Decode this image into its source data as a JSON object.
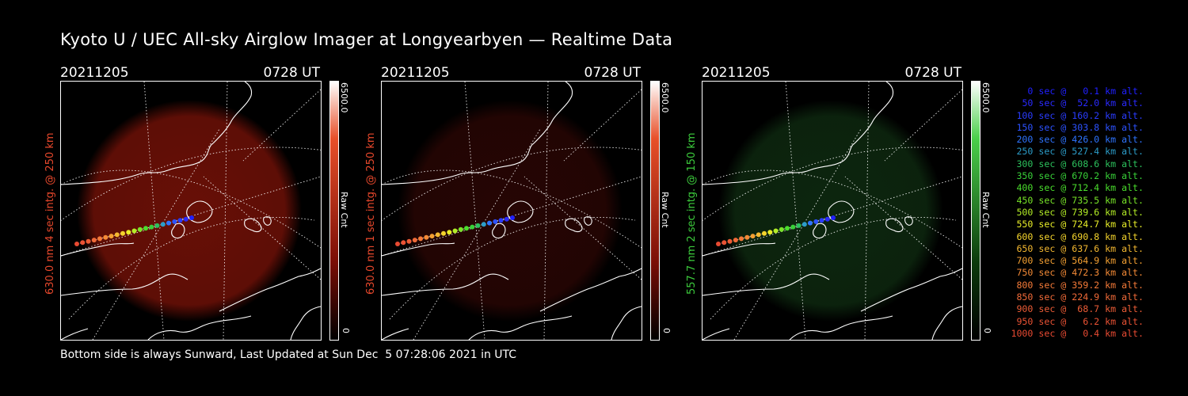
{
  "page": {
    "title": "Kyoto U / UEC All-sky Airglow Imager at Longyearbyen — Realtime Data",
    "footer": "Bottom side is always Sunward, Last Updated at Sun Dec  5 07:28:06 2021 in UTC"
  },
  "panels": [
    {
      "date": "20211205",
      "time": "0728 UT",
      "ylabel": "630.0 nm 4 sec intg. @ 250 km",
      "ylabel_color": "#e8482c",
      "cbar_max": "6500.0",
      "cbar_min": "0",
      "cbar_label": "Raw Cnt",
      "cbar_top_color": "#ffffff",
      "cbar_mid_color": "#e8502a",
      "cbar_low_color": "#7a0e06",
      "glow_color": "#7a1208",
      "glow_opacity": 0.85
    },
    {
      "date": "20211205",
      "time": "0728 UT",
      "ylabel": "630.0 nm 1 sec intg. @ 250 km",
      "ylabel_color": "#e8482c",
      "cbar_max": "6500.0",
      "cbar_min": "0",
      "cbar_label": "Raw Cnt",
      "cbar_top_color": "#ffffff",
      "cbar_mid_color": "#e8502a",
      "cbar_low_color": "#7a0e06",
      "glow_color": "#2a0604",
      "glow_opacity": 0.9
    },
    {
      "date": "20211205",
      "time": "0728 UT",
      "ylabel": "557.7 nm 2 sec intg. @ 150 km",
      "ylabel_color": "#3ccc3c",
      "cbar_max": "6500.0",
      "cbar_min": "0",
      "cbar_label": "Raw Cnt",
      "cbar_top_color": "#ffffff",
      "cbar_mid_color": "#4ad04a",
      "cbar_low_color": "#0c3a0c",
      "glow_color": "#0e2a10",
      "glow_opacity": 0.9
    }
  ],
  "legend": [
    {
      "text": "0 sec @   0.1 km alt.",
      "color": "#2020ff"
    },
    {
      "text": "50 sec @  52.0 km alt.",
      "color": "#2a2aff"
    },
    {
      "text": "100 sec @ 160.2 km alt.",
      "color": "#2a3cff"
    },
    {
      "text": "150 sec @ 303.8 km alt.",
      "color": "#2c52ff"
    },
    {
      "text": "200 sec @ 426.0 km alt.",
      "color": "#2e74ff"
    },
    {
      "text": "250 sec @ 527.4 km alt.",
      "color": "#2c9cc8"
    },
    {
      "text": "300 sec @ 608.6 km alt.",
      "color": "#2cc05c"
    },
    {
      "text": "350 sec @ 670.2 km alt.",
      "color": "#38d038"
    },
    {
      "text": "400 sec @ 712.4 km alt.",
      "color": "#4ade2c"
    },
    {
      "text": "450 sec @ 735.5 km alt.",
      "color": "#78e428"
    },
    {
      "text": "500 sec @ 739.6 km alt.",
      "color": "#b4ee26"
    },
    {
      "text": "550 sec @ 724.7 km alt.",
      "color": "#e8ee28"
    },
    {
      "text": "600 sec @ 690.8 km alt.",
      "color": "#f4d42c"
    },
    {
      "text": "650 sec @ 637.6 km alt.",
      "color": "#f4b830"
    },
    {
      "text": "700 sec @ 564.9 km alt.",
      "color": "#f4a032"
    },
    {
      "text": "750 sec @ 472.3 km alt.",
      "color": "#f48a36"
    },
    {
      "text": "800 sec @ 359.2 km alt.",
      "color": "#f47a38"
    },
    {
      "text": "850 sec @ 224.9 km alt.",
      "color": "#f06a38"
    },
    {
      "text": "900 sec @  68.7 km alt.",
      "color": "#ec5c36"
    },
    {
      "text": "950 sec @   6.2 km alt.",
      "color": "#ea5234"
    },
    {
      "text": "1000 sec @   0.4 km alt.",
      "color": "#e84a32"
    }
  ]
}
